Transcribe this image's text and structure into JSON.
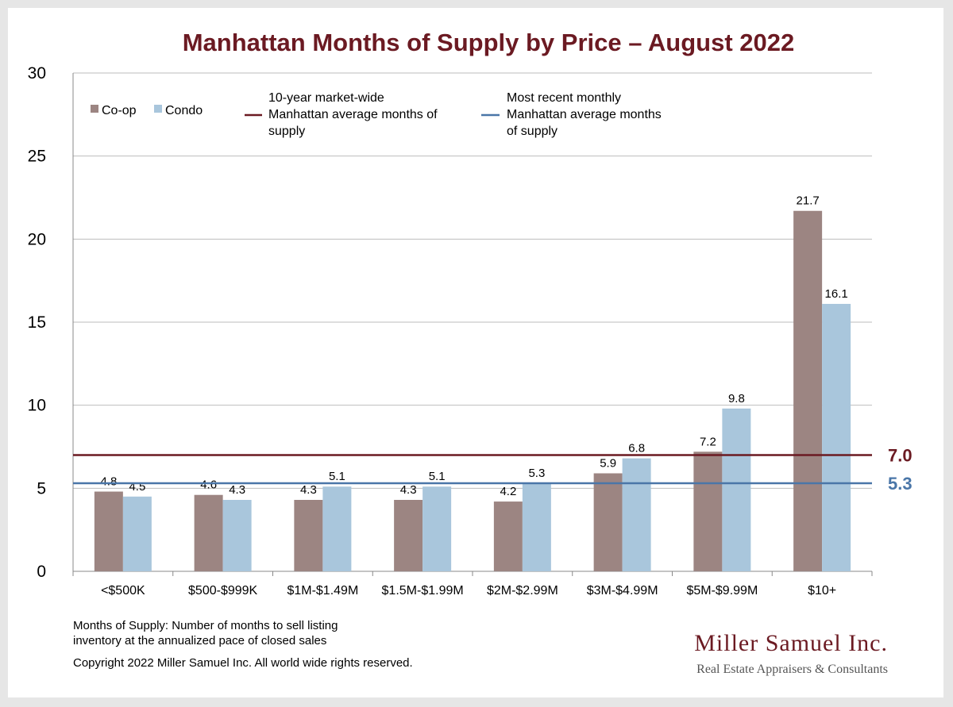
{
  "chart_data": {
    "type": "bar",
    "title": "Manhattan Months of Supply by Price – August 2022",
    "categories": [
      "<$500K",
      "$500-$999K",
      "$1M-$1.49M",
      "$1.5M-$1.99M",
      "$2M-$2.99M",
      "$3M-$4.99M",
      "$5M-$9.99M",
      "$10+"
    ],
    "series": [
      {
        "name": "Co-op",
        "color": "#9c8582",
        "values": [
          4.8,
          4.6,
          4.3,
          4.3,
          4.2,
          5.9,
          7.2,
          21.7
        ],
        "labels": [
          "4.8",
          "4.6",
          "4.3",
          "4.3",
          "4.2",
          "5.9",
          "7.2",
          "21.7"
        ]
      },
      {
        "name": "Condo",
        "color": "#a9c6dc",
        "values": [
          4.5,
          4.3,
          5.1,
          5.1,
          5.3,
          6.8,
          9.8,
          16.1
        ],
        "labels": [
          "4.5",
          "4.3",
          "5.1",
          "5.1",
          "5.3",
          "6.8",
          "9.8",
          "16.1"
        ]
      }
    ],
    "reference_lines": [
      {
        "legend": [
          "10-year market-wide",
          "Manhattan average months of",
          "supply"
        ],
        "value": 7.0,
        "label": "7.0",
        "color": "#6b1a22"
      },
      {
        "legend": [
          "Most recent monthly",
          "Manhattan average months",
          "of supply"
        ],
        "value": 5.3,
        "label": "5.3",
        "color": "#4a76a8"
      }
    ],
    "ylim": [
      0,
      30
    ],
    "yticks": [
      0,
      5,
      10,
      15,
      20,
      25,
      30
    ],
    "grid": true,
    "legend_position": "top"
  },
  "footnotes": {
    "definition": [
      "Months of Supply: Number of months to sell listing",
      "inventory at the annualized pace of closed sales"
    ],
    "copyright": "Copyright 2022 Miller Samuel Inc.  All world wide rights reserved."
  },
  "logo": {
    "name": "Miller Samuel Inc.",
    "tagline": "Real Estate Appraisers & Consultants"
  }
}
